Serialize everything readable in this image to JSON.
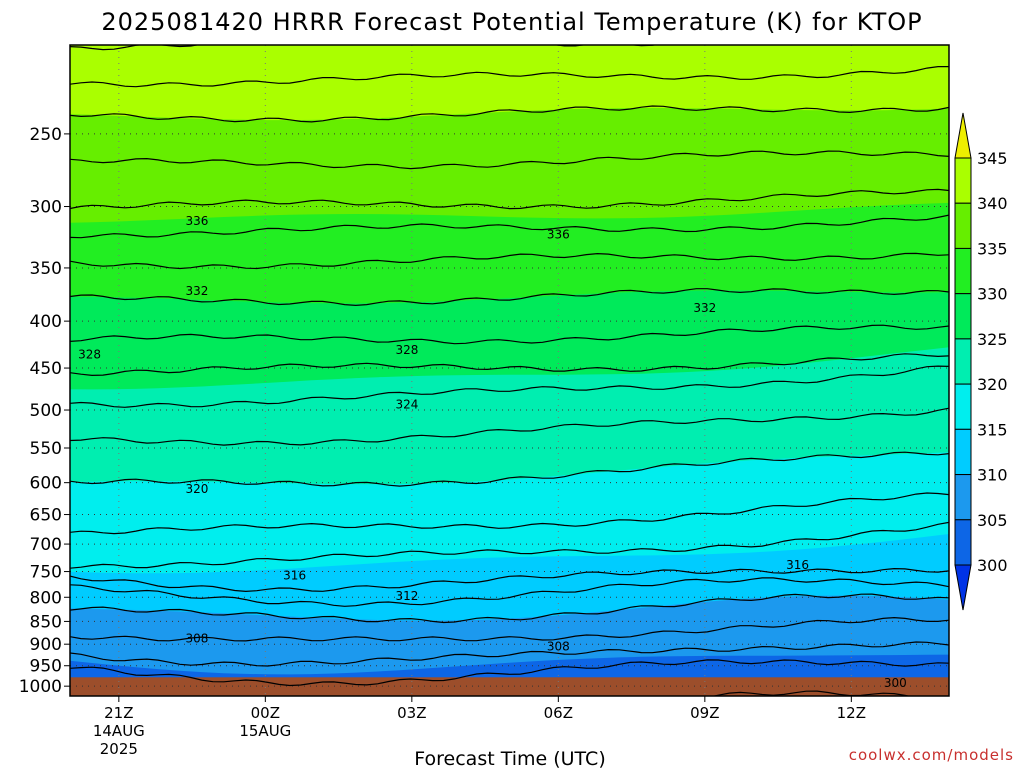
{
  "chart_data": {
    "type": "heatmap",
    "title": "2025081420 HRRR Forecast Potential Temperature (K) for KTOP",
    "xlabel": "Forecast Time (UTC)",
    "credit": "coolwx.com/models",
    "x_ticks": [
      {
        "hour": 1,
        "label": "21Z",
        "sub1": "14AUG",
        "sub2": "2025"
      },
      {
        "hour": 4,
        "label": "00Z",
        "sub1": "15AUG",
        "sub2": ""
      },
      {
        "hour": 7,
        "label": "03Z",
        "sub1": "",
        "sub2": ""
      },
      {
        "hour": 10,
        "label": "06Z",
        "sub1": "",
        "sub2": ""
      },
      {
        "hour": 13,
        "label": "09Z",
        "sub1": "",
        "sub2": ""
      },
      {
        "hour": 16,
        "label": "12Z",
        "sub1": "",
        "sub2": ""
      }
    ],
    "x_range_hours": [
      0,
      18
    ],
    "y_ticks": [
      250,
      300,
      350,
      400,
      450,
      500,
      550,
      600,
      650,
      700,
      750,
      800,
      850,
      900,
      950,
      1000
    ],
    "y_range_hpa": [
      200,
      1025
    ],
    "y_scale": "log-pressure",
    "grid": true,
    "ground_color": "#9c4e2b",
    "colorbar": {
      "labels": [
        "300",
        "305",
        "310",
        "315",
        "320",
        "325",
        "330",
        "335",
        "340",
        "345"
      ],
      "levels": [
        300,
        305,
        310,
        315,
        320,
        325,
        330,
        335,
        340,
        345
      ],
      "colors": [
        "#0033e6",
        "#0d66e6",
        "#1c99ee",
        "#00ccff",
        "#00eeee",
        "#00eeb0",
        "#00ea5a",
        "#22ee22",
        "#66ee00",
        "#aaff00",
        "#eeee00"
      ]
    },
    "theta_profile": [
      {
        "p": 1000,
        "theta": 303
      },
      {
        "p": 960,
        "theta": 304
      },
      {
        "p": 900,
        "theta": 307
      },
      {
        "p": 850,
        "theta": 309
      },
      {
        "p": 800,
        "theta": 311
      },
      {
        "p": 760,
        "theta": 314
      },
      {
        "p": 720,
        "theta": 317
      },
      {
        "p": 640,
        "theta": 319
      },
      {
        "p": 570,
        "theta": 321
      },
      {
        "p": 500,
        "theta": 323.5
      },
      {
        "p": 470,
        "theta": 325
      },
      {
        "p": 420,
        "theta": 328
      },
      {
        "p": 380,
        "theta": 330
      },
      {
        "p": 330,
        "theta": 333
      },
      {
        "p": 300,
        "theta": 336
      },
      {
        "p": 270,
        "theta": 338
      },
      {
        "p": 245,
        "theta": 339.5
      },
      {
        "p": 200,
        "theta": 344
      }
    ],
    "contour_labels": [
      {
        "text": "336",
        "hour": 2.6,
        "p": 311
      },
      {
        "text": "336",
        "hour": 10.0,
        "p": 322
      },
      {
        "text": "332",
        "hour": 2.6,
        "p": 371
      },
      {
        "text": "332",
        "hour": 13.0,
        "p": 387
      },
      {
        "text": "328",
        "hour": 0.4,
        "p": 435
      },
      {
        "text": "328",
        "hour": 6.9,
        "p": 430
      },
      {
        "text": "324",
        "hour": 6.9,
        "p": 493
      },
      {
        "text": "320",
        "hour": 2.6,
        "p": 610
      },
      {
        "text": "316",
        "hour": 4.6,
        "p": 757
      },
      {
        "text": "316",
        "hour": 14.9,
        "p": 738
      },
      {
        "text": "312",
        "hour": 6.9,
        "p": 797
      },
      {
        "text": "308",
        "hour": 2.6,
        "p": 887
      },
      {
        "text": "308",
        "hour": 10.0,
        "p": 905
      },
      {
        "text": "300",
        "hour": 16.9,
        "p": 992
      }
    ]
  }
}
